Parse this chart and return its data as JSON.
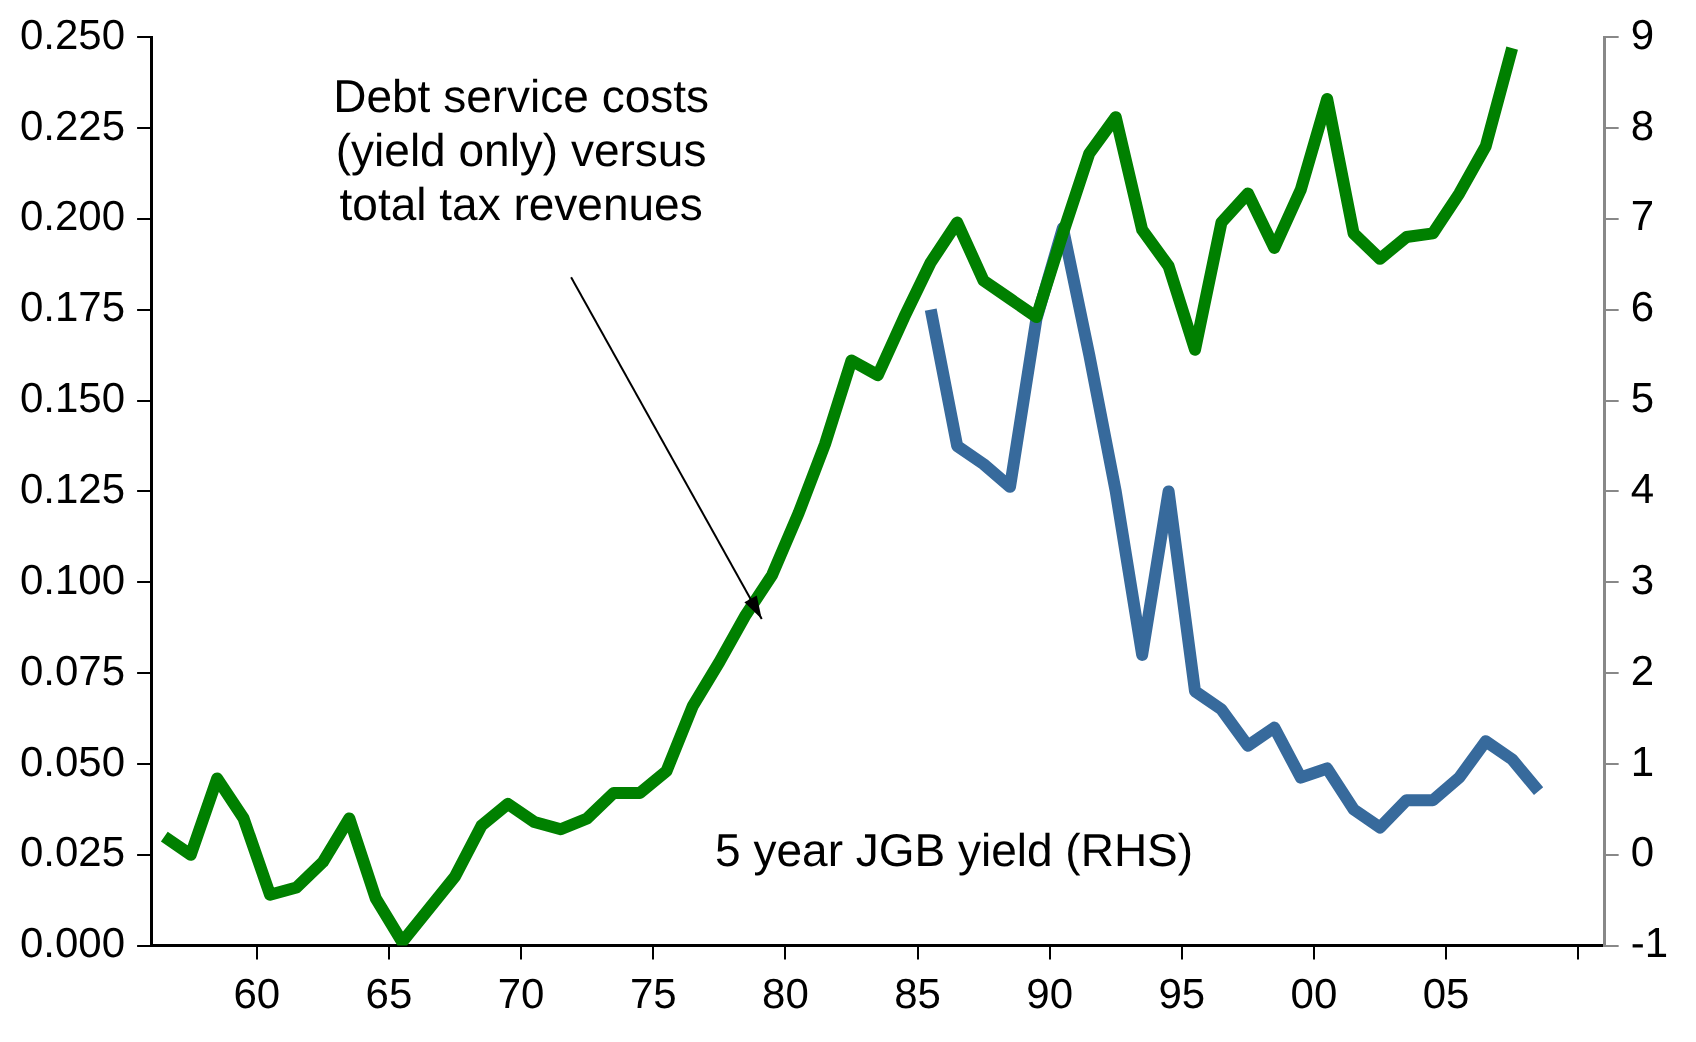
{
  "chart_data": {
    "type": "line",
    "xlim": [
      1956,
      2011
    ],
    "xticks": [
      {
        "value": 1960,
        "label": "60"
      },
      {
        "value": 1965,
        "label": "65"
      },
      {
        "value": 1970,
        "label": "70"
      },
      {
        "value": 1975,
        "label": "75"
      },
      {
        "value": 1980,
        "label": "80"
      },
      {
        "value": 1985,
        "label": "85"
      },
      {
        "value": 1990,
        "label": "90"
      },
      {
        "value": 1995,
        "label": "95"
      },
      {
        "value": 2000,
        "label": "00"
      },
      {
        "value": 2005,
        "label": "05"
      },
      {
        "value": 2010,
        "label": null
      }
    ],
    "ylim": [
      0,
      0.25
    ],
    "yticks": [
      {
        "value": 0,
        "label": "0.000"
      },
      {
        "value": 0.025,
        "label": "0.025"
      },
      {
        "value": 0.05,
        "label": "0.050"
      },
      {
        "value": 0.075,
        "label": "0.075"
      },
      {
        "value": 0.1,
        "label": "0.100"
      },
      {
        "value": 0.125,
        "label": "0.125"
      },
      {
        "value": 0.15,
        "label": "0.150"
      },
      {
        "value": 0.175,
        "label": "0.175"
      },
      {
        "value": 0.2,
        "label": "0.200"
      },
      {
        "value": 0.225,
        "label": "0.225"
      },
      {
        "value": 0.25,
        "label": "0.250"
      }
    ],
    "y2lim": [
      -1,
      9
    ],
    "y2ticks": [
      -1,
      0,
      1,
      2,
      3,
      4,
      5,
      6,
      7,
      8,
      9
    ],
    "grid": false,
    "legend": false,
    "marker": "none",
    "annotations": [
      {
        "text": "Debt service costs (yield only) versus total tax revenues",
        "x": 1978.5,
        "y": 0.091
      },
      "5 year JGB yield (RHS)"
    ],
    "line_style": "solid",
    "series": [
      {
        "color": "#008000",
        "x": [
          1956.5,
          1957.5,
          1958.5,
          1959.5,
          1960.5,
          1961.5,
          1962.5,
          1963.5,
          1964.5,
          1965.5,
          1966.5,
          1967.5,
          1968.5,
          1969.5,
          1970.5,
          1971.5,
          1972.5,
          1973.5,
          1974.5,
          1975.5,
          1976.5,
          1977.5,
          1978.5,
          1979.5,
          1980.5,
          1981.5,
          1982.5,
          1983.5,
          1984.5,
          1985.5,
          1986.5,
          1987.5,
          1988.5,
          1989.5,
          1990.5,
          1991.5,
          1992.5,
          1993.5,
          1994.5,
          1995.5,
          1996.5,
          1997.5,
          1998.5,
          1999.5,
          2000.5,
          2001.5,
          2002.5,
          2003.5,
          2004.5,
          2005.5,
          2006.5,
          2007.5
        ],
        "values": [
          0.03,
          0.025,
          0.046,
          0.035,
          0.014,
          0.016,
          0.023,
          0.035,
          0.013,
          0.001,
          0.01,
          0.019,
          0.033,
          0.039,
          0.034,
          0.032,
          0.035,
          0.042,
          0.042,
          0.048,
          0.066,
          0.078,
          0.091,
          0.102,
          0.119,
          0.138,
          0.161,
          0.157,
          0.173,
          0.188,
          0.199,
          0.183,
          0.178,
          0.173,
          0.196,
          0.218,
          0.228,
          0.197,
          0.187,
          0.164,
          0.199,
          0.207,
          0.192,
          0.208,
          0.233,
          0.196,
          0.189,
          0.195,
          0.196,
          0.207,
          0.22,
          0.247
        ]
      },
      {
        "color": "#376a9c",
        "axis": "y2",
        "x": [
          1985.5,
          1986.5,
          1987.5,
          1988.5,
          1989.5,
          1990.5,
          1991.5,
          1992.5,
          1993.5,
          1994.5,
          1995.5,
          1996.5,
          1997.5,
          1998.5,
          1999.5,
          2000.5,
          2001.5,
          2002.5,
          2003.5,
          2004.5,
          2005.5,
          2006.5,
          2007.5,
          2008.5
        ],
        "values": [
          6.0,
          4.5,
          4.3,
          4.05,
          5.9,
          6.9,
          5.5,
          4.0,
          2.2,
          4.0,
          1.8,
          1.6,
          1.2,
          1.4,
          0.85,
          0.95,
          0.5,
          0.3,
          0.6,
          0.6,
          0.85,
          1.25,
          1.05,
          0.7
        ]
      }
    ]
  }
}
